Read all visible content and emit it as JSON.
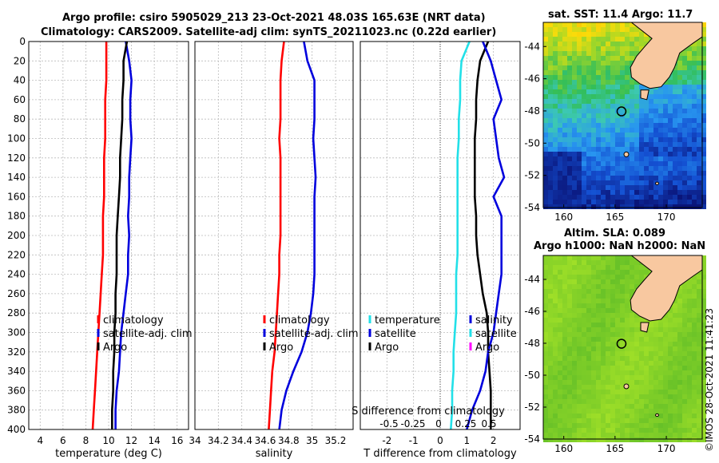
{
  "title": {
    "line1": "Argo profile: csiro 5905029_213 23-Oct-2021 48.03S 165.63E (NRT data)",
    "line2": "Climatology: CARS2009. Satellite-adj clim: synTS_20211023.nc (0.22d earlier)"
  },
  "colors": {
    "red": "#ff0000",
    "blue": "#0000dd",
    "black": "#000000",
    "cyan": "#22e0e8",
    "magenta": "#ff00ff"
  },
  "chart_data": [
    {
      "type": "line",
      "id": "temperature",
      "xlabel": "temperature (deg C)",
      "ylabel": "",
      "xlim": [
        3,
        17
      ],
      "ylim": [
        400,
        0
      ],
      "xticks": [
        4,
        6,
        8,
        10,
        12,
        14,
        16
      ],
      "yticks": [
        0,
        20,
        40,
        60,
        80,
        100,
        120,
        140,
        160,
        180,
        200,
        220,
        240,
        260,
        280,
        300,
        320,
        340,
        360,
        380,
        400
      ],
      "legend": [
        "climatology",
        "satellite-adj. clim",
        "Argo"
      ],
      "series": [
        {
          "name": "climatology",
          "color": "#ff0000",
          "x": [
            9.8,
            9.8,
            9.8,
            9.7,
            9.7,
            9.7,
            9.6,
            9.6,
            9.6,
            9.5,
            9.5,
            9.5,
            9.4,
            9.3,
            9.2,
            9.1,
            9.0,
            8.9,
            8.8,
            8.7,
            8.6
          ],
          "y": [
            0,
            20,
            40,
            60,
            80,
            100,
            120,
            140,
            160,
            180,
            200,
            220,
            240,
            260,
            280,
            300,
            320,
            340,
            360,
            380,
            400
          ]
        },
        {
          "name": "satellite-adj. clim",
          "color": "#0000dd",
          "x": [
            11.5,
            11.8,
            12.0,
            11.9,
            11.9,
            12.0,
            11.9,
            11.8,
            11.8,
            11.7,
            11.8,
            11.7,
            11.7,
            11.5,
            11.3,
            11.1,
            11.0,
            10.9,
            10.7,
            10.6,
            10.6
          ],
          "y": [
            0,
            20,
            40,
            60,
            80,
            100,
            120,
            140,
            160,
            180,
            200,
            220,
            240,
            260,
            280,
            300,
            320,
            340,
            360,
            380,
            400
          ]
        },
        {
          "name": "Argo",
          "color": "#000000",
          "x": [
            11.6,
            11.3,
            11.3,
            11.2,
            11.2,
            11.1,
            11.0,
            11.0,
            10.9,
            10.8,
            10.7,
            10.7,
            10.7,
            10.6,
            10.6,
            10.5,
            10.5,
            10.4,
            10.4,
            10.3,
            10.3
          ],
          "y": [
            0,
            20,
            40,
            60,
            80,
            100,
            120,
            140,
            160,
            180,
            200,
            220,
            240,
            260,
            280,
            300,
            320,
            340,
            360,
            380,
            400
          ]
        }
      ]
    },
    {
      "type": "line",
      "id": "salinity",
      "xlabel": "salinity",
      "xlim": [
        34.0,
        35.35
      ],
      "ylim": [
        400,
        0
      ],
      "xticks": [
        "34",
        "34.2",
        "34.4",
        "34.6",
        "34.8",
        "35",
        "35.2"
      ],
      "legend": [
        "climatology",
        "satellite-adj. clim",
        "Argo"
      ],
      "series": [
        {
          "name": "climatology",
          "color": "#ff0000",
          "x": [
            34.76,
            34.74,
            34.73,
            34.73,
            34.73,
            34.72,
            34.73,
            34.73,
            34.73,
            34.73,
            34.73,
            34.72,
            34.72,
            34.71,
            34.7,
            34.69,
            34.68,
            34.66,
            34.65,
            34.64,
            34.63
          ],
          "y": [
            0,
            20,
            40,
            60,
            80,
            100,
            120,
            140,
            160,
            180,
            200,
            220,
            240,
            260,
            280,
            300,
            320,
            340,
            360,
            380,
            400
          ]
        },
        {
          "name": "satellite-adj. clim",
          "color": "#0000dd",
          "x": [
            34.93,
            34.96,
            35.02,
            35.02,
            35.02,
            35.01,
            35.02,
            35.03,
            35.02,
            35.02,
            35.02,
            35.02,
            35.02,
            35.01,
            34.99,
            34.96,
            34.91,
            34.84,
            34.78,
            34.74,
            34.72
          ],
          "y": [
            0,
            20,
            40,
            60,
            80,
            100,
            120,
            140,
            160,
            180,
            200,
            220,
            240,
            260,
            280,
            300,
            320,
            340,
            360,
            380,
            400
          ]
        }
      ]
    },
    {
      "type": "line",
      "id": "difference",
      "xlabel": "T difference from climatology",
      "xlabel2": "S difference from climatology",
      "xlim": [
        -3,
        3
      ],
      "ylim": [
        400,
        0
      ],
      "xticks": [
        "-2",
        "-1",
        "0",
        "1",
        "2"
      ],
      "xticks2": [
        "-0.5",
        "-0.25",
        "0",
        "0.25",
        "0.5"
      ],
      "legend_left": [
        "temperature",
        "satellite",
        "Argo"
      ],
      "legend_right": [
        "salinity",
        "satellite",
        "Argo"
      ],
      "series": [
        {
          "name": "temperature satellite",
          "color": "#22e0e8",
          "x": [
            1.1,
            0.8,
            0.75,
            0.75,
            0.7,
            0.7,
            0.65,
            0.65,
            0.65,
            0.65,
            0.65,
            0.65,
            0.6,
            0.6,
            0.6,
            0.55,
            0.5,
            0.5,
            0.45,
            0.45,
            0.4
          ],
          "y": [
            0,
            20,
            40,
            60,
            80,
            100,
            120,
            140,
            160,
            180,
            200,
            220,
            240,
            260,
            280,
            300,
            320,
            340,
            360,
            380,
            400
          ]
        },
        {
          "name": "temperature Argo",
          "color": "#000000",
          "x": [
            1.8,
            1.5,
            1.4,
            1.35,
            1.35,
            1.3,
            1.3,
            1.3,
            1.3,
            1.35,
            1.35,
            1.4,
            1.5,
            1.6,
            1.75,
            1.8,
            1.8,
            1.85,
            1.9,
            1.9,
            1.9
          ],
          "y": [
            0,
            20,
            40,
            60,
            80,
            100,
            120,
            140,
            160,
            180,
            200,
            220,
            240,
            260,
            280,
            300,
            320,
            340,
            360,
            380,
            400
          ]
        },
        {
          "name": "salinity satellite",
          "color": "#0000dd",
          "x": [
            1.6,
            1.9,
            2.1,
            2.3,
            2.0,
            2.1,
            2.2,
            2.4,
            2.0,
            2.3,
            2.3,
            2.3,
            2.3,
            2.2,
            2.1,
            2.0,
            1.8,
            1.7,
            1.5,
            1.2,
            1.0
          ],
          "y": [
            0,
            20,
            40,
            60,
            80,
            100,
            120,
            140,
            160,
            180,
            200,
            220,
            240,
            260,
            280,
            300,
            320,
            340,
            360,
            380,
            400
          ]
        }
      ]
    },
    {
      "type": "heatmap",
      "id": "sst-map",
      "title": "sat. SST: 11.4 Argo: 11.7",
      "xlim": [
        158,
        173.5
      ],
      "ylim": [
        -54,
        -42.5
      ],
      "xticks": [
        "160",
        "165",
        "170"
      ],
      "yticks": [
        "-44",
        "-46",
        "-48",
        "-50",
        "-52",
        "-54"
      ],
      "argo_position": {
        "lon": 165.63,
        "lat": -48.03
      }
    },
    {
      "type": "heatmap",
      "id": "sla-map",
      "title1": "Altim. SLA: 0.089",
      "title2": "Argo h1000: NaN h2000: NaN",
      "xlim": [
        158,
        173.5
      ],
      "ylim": [
        -54,
        -42.5
      ],
      "xticks": [
        "160",
        "165",
        "170"
      ],
      "yticks": [
        "-44",
        "-46",
        "-48",
        "-50",
        "-52",
        "-54"
      ],
      "argo_position": {
        "lon": 165.63,
        "lat": -48.03
      }
    }
  ],
  "watermark": "©IMOS 28-Oct-2021 11:41:23"
}
